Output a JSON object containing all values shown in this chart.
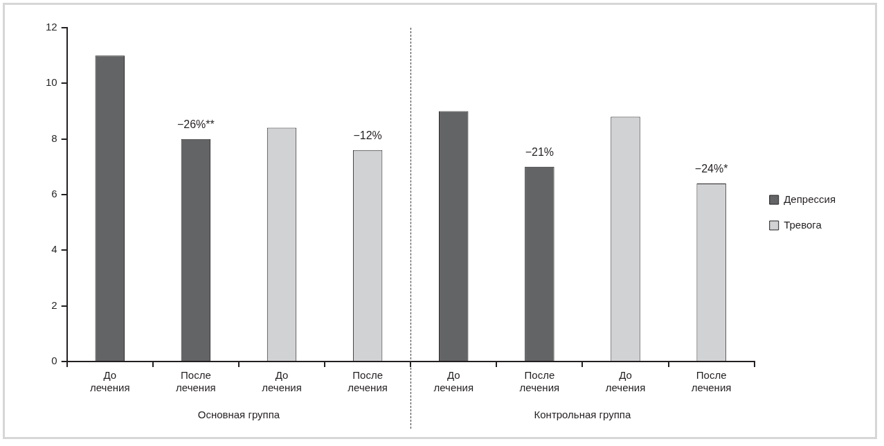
{
  "chart_data": {
    "type": "bar",
    "categories": [
      "До лечения",
      "После лечения",
      "До лечения",
      "После лечения",
      "До лечения",
      "После лечения",
      "До лечения",
      "После лечения"
    ],
    "series": [
      {
        "name": "Депрессия",
        "color": "#636466",
        "values": [
          11,
          8,
          null,
          null,
          9,
          7,
          null,
          null
        ]
      },
      {
        "name": "Тревога",
        "color": "#d1d2d4",
        "values": [
          null,
          null,
          8.4,
          7.6,
          null,
          null,
          8.8,
          6.4
        ]
      }
    ],
    "ylim": [
      0,
      12
    ],
    "yticks": [
      0,
      2,
      4,
      6,
      8,
      10,
      12
    ],
    "grid": false,
    "legend": "right",
    "annotations": [
      "−26%**",
      "−12%",
      "−21%",
      "−24%*",
      "Основная группа",
      "Контрольная группа"
    ]
  }
}
